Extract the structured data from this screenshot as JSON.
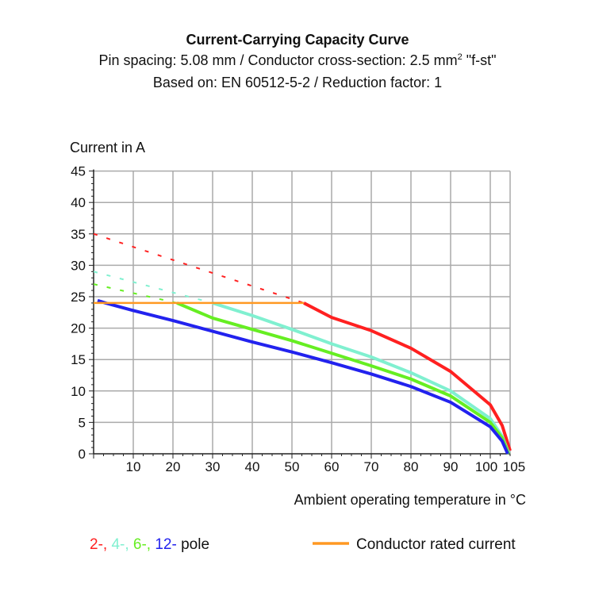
{
  "chart_data": {
    "type": "line",
    "title": "Current-Carrying Capacity Curve",
    "subtitle_1": {
      "pre": "Pin spacing: 5.08 mm / Conductor cross-section: 2.5 mm",
      "sup": "2",
      "post": " \"f-st\""
    },
    "subtitle_2": "Based on: EN 60512-5-2 / Reduction factor: 1",
    "ylabel": "Current in A",
    "xlabel": "Ambient operating temperature in °C",
    "xlim": [
      0,
      105
    ],
    "ylim": [
      0,
      45
    ],
    "xticks": [
      10,
      20,
      30,
      40,
      50,
      60,
      70,
      80,
      90,
      100,
      105
    ],
    "yticks": [
      0,
      5,
      10,
      15,
      20,
      25,
      30,
      35,
      40,
      45
    ],
    "grid": true,
    "legend": {
      "poles": [
        {
          "text": "2-",
          "color": "#ff2020"
        },
        {
          "text": "4-",
          "color": "#80f0d0"
        },
        {
          "text": "6-",
          "color": "#66ee22"
        },
        {
          "text": "12-",
          "color": "#2222ee"
        }
      ],
      "poles_suffix": " pole",
      "rated_label": "Conductor rated current",
      "rated_color": "#ff9922"
    },
    "series": [
      {
        "name": "2-",
        "color": "#ff2020",
        "dashed": [
          [
            0,
            35
          ],
          [
            53,
            24
          ]
        ],
        "solid": [
          [
            53,
            24
          ],
          [
            60,
            21.7
          ],
          [
            70,
            19.6
          ],
          [
            80,
            16.8
          ],
          [
            90,
            13.1
          ],
          [
            100,
            7.8
          ],
          [
            103,
            4.5
          ],
          [
            105,
            0.5
          ]
        ]
      },
      {
        "name": "4-",
        "color": "#80f0d0",
        "dashed": [
          [
            0,
            29
          ],
          [
            30,
            24
          ]
        ],
        "solid": [
          [
            30,
            24
          ],
          [
            40,
            22
          ],
          [
            50,
            19.8
          ],
          [
            60,
            17.5
          ],
          [
            70,
            15.4
          ],
          [
            80,
            12.9
          ],
          [
            90,
            10
          ],
          [
            100,
            5.6
          ],
          [
            103,
            2.8
          ],
          [
            104.7,
            0
          ]
        ]
      },
      {
        "name": "6-",
        "color": "#66ee22",
        "dashed": [
          [
            0,
            27
          ],
          [
            21,
            24
          ]
        ],
        "solid": [
          [
            21,
            24
          ],
          [
            30,
            21.6
          ],
          [
            40,
            19.8
          ],
          [
            50,
            18
          ],
          [
            60,
            16
          ],
          [
            70,
            14
          ],
          [
            80,
            11.9
          ],
          [
            90,
            9.2
          ],
          [
            100,
            5
          ],
          [
            103,
            2.5
          ],
          [
            104.6,
            0
          ]
        ]
      },
      {
        "name": "12-",
        "color": "#2222ee",
        "dashed": [],
        "solid": [
          [
            1,
            24.4
          ],
          [
            3,
            24
          ],
          [
            10,
            22.8
          ],
          [
            20,
            21.2
          ],
          [
            30,
            19.5
          ],
          [
            40,
            17.8
          ],
          [
            50,
            16.2
          ],
          [
            60,
            14.5
          ],
          [
            70,
            12.7
          ],
          [
            80,
            10.7
          ],
          [
            90,
            8.2
          ],
          [
            100,
            4.3
          ],
          [
            103,
            2
          ],
          [
            104.4,
            0
          ]
        ]
      },
      {
        "name": "Conductor rated current",
        "color": "#ff9922",
        "dashed": [],
        "solid": [
          [
            0,
            24
          ],
          [
            53,
            24
          ]
        ]
      }
    ]
  }
}
